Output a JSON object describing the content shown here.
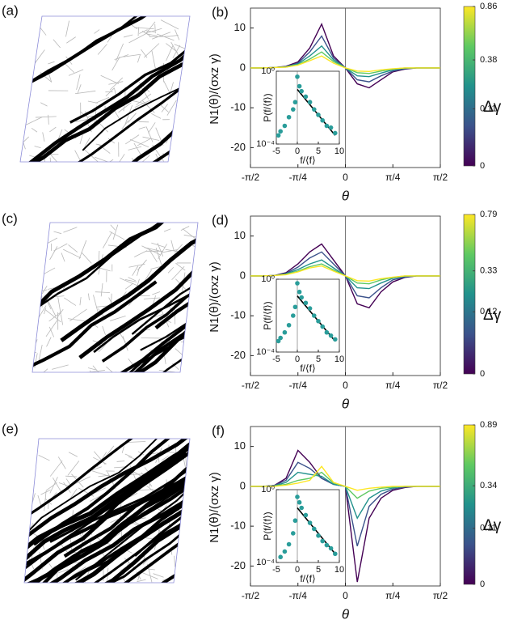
{
  "image_labels": [
    "(a)",
    "(c)",
    "(e)"
  ],
  "chart_data": [
    {
      "type": "line",
      "label": "(b)",
      "x": [
        -1.571,
        -1.374,
        -1.178,
        -0.982,
        -0.785,
        -0.589,
        -0.393,
        -0.196,
        0,
        0.196,
        0.393,
        0.589,
        0.785,
        0.982,
        1.178,
        1.374,
        1.571
      ],
      "xlim": [
        -1.5708,
        1.5708
      ],
      "xticks": [
        {
          "value": -1.5708,
          "label": "-π/2"
        },
        {
          "value": -0.7854,
          "label": "-π/4"
        },
        0,
        {
          "value": 0.7854,
          "label": "π/4"
        },
        {
          "value": 1.5708,
          "label": "π/2"
        }
      ],
      "ylim": [
        -25,
        15
      ],
      "yticks": [
        -20,
        -10,
        0,
        10
      ],
      "xlabel": "θ",
      "ylabel": "N1(θ)/(σxz γ)",
      "series": [
        {
          "color": "#440154",
          "values": [
            0,
            0,
            0.1,
            0.4,
            1.5,
            5,
            11,
            3,
            0,
            -4,
            -5,
            -3,
            -1,
            -0.3,
            0,
            0,
            0
          ]
        },
        {
          "color": "#3b528b",
          "values": [
            0,
            0,
            0.1,
            0.3,
            1.2,
            4,
            8,
            2.5,
            0,
            -3,
            -3.5,
            -2,
            -0.8,
            -0.2,
            0,
            0,
            0
          ]
        },
        {
          "color": "#21918c",
          "values": [
            0,
            0,
            0.1,
            0.3,
            1,
            3,
            5.5,
            2,
            0,
            -2,
            -2.2,
            -1.3,
            -0.5,
            -0.1,
            0,
            0,
            0
          ]
        },
        {
          "color": "#5ec962",
          "values": [
            0,
            0,
            0.1,
            0.2,
            0.8,
            2.2,
            4,
            1.6,
            0,
            -1.2,
            -1.4,
            -0.8,
            -0.3,
            0,
            0,
            0,
            0
          ]
        },
        {
          "color": "#fde725",
          "values": [
            0,
            0,
            0.1,
            0.2,
            0.7,
            1.8,
            3,
            1.2,
            0,
            -0.8,
            -0.9,
            -0.5,
            -0.2,
            0,
            0,
            0,
            0
          ]
        }
      ],
      "colorbar": {
        "label": "Δγ",
        "lim": [
          0,
          0.86
        ],
        "ticks": [
          0,
          0.11,
          0.38,
          0.86
        ],
        "scale": "sqrt"
      },
      "inset": {
        "type": "scatter",
        "color": "#2a9d9a",
        "x": [
          -4.5,
          -4,
          -3,
          -2,
          -1,
          -0.5,
          0,
          0.5,
          1,
          2,
          3,
          4,
          5,
          6,
          7,
          8,
          9
        ],
        "y": [
          0.0003,
          0.0005,
          0.001,
          0.003,
          0.008,
          0.02,
          0.5,
          0.15,
          0.08,
          0.04,
          0.02,
          0.008,
          0.004,
          0.002,
          0.001,
          0.0008,
          0.0004
        ],
        "fit_x": [
          0,
          9
        ],
        "fit_y": [
          0.1,
          0.0003
        ],
        "xlim": [
          -5,
          10
        ],
        "ylim": [
          0.0001,
          1
        ],
        "yscale": "log",
        "xticks": [
          -5,
          0,
          5,
          10
        ],
        "yticks": [
          {
            "value": 0.0001,
            "label": "10⁻⁴"
          },
          {
            "value": 1,
            "label": "10⁰"
          }
        ],
        "xlabel": "f/⟨f⟩",
        "ylabel": "P(f/⟨f⟩)"
      }
    },
    {
      "type": "line",
      "label": "(d)",
      "x": [
        -1.571,
        -1.374,
        -1.178,
        -0.982,
        -0.785,
        -0.589,
        -0.393,
        -0.196,
        0,
        0.196,
        0.393,
        0.589,
        0.785,
        0.982,
        1.178,
        1.374,
        1.571
      ],
      "xlim": [
        -1.5708,
        1.5708
      ],
      "xticks": [
        {
          "value": -1.5708,
          "label": "-π/2"
        },
        {
          "value": -0.7854,
          "label": "-π/4"
        },
        0,
        {
          "value": 0.7854,
          "label": "π/4"
        },
        {
          "value": 1.5708,
          "label": "π/2"
        }
      ],
      "ylim": [
        -25,
        15
      ],
      "yticks": [
        -20,
        -10,
        0,
        10
      ],
      "xlabel": "θ",
      "ylabel": "N1(θ)/(σxz γ)",
      "series": [
        {
          "color": "#440154",
          "values": [
            0,
            0,
            0.1,
            0.8,
            3,
            6,
            8,
            4,
            0,
            -7,
            -8,
            -4,
            -1.5,
            -0.4,
            0,
            0,
            0
          ]
        },
        {
          "color": "#3b528b",
          "values": [
            0,
            0,
            0.1,
            0.6,
            2.2,
            4.5,
            6,
            3,
            0,
            -5,
            -5.5,
            -3,
            -1,
            -0.3,
            0,
            0,
            0
          ]
        },
        {
          "color": "#21918c",
          "values": [
            0,
            0,
            0.1,
            0.5,
            1.6,
            3,
            4,
            2,
            0,
            -3,
            -3.2,
            -1.8,
            -0.6,
            -0.1,
            0,
            0,
            0
          ]
        },
        {
          "color": "#5ec962",
          "values": [
            0,
            0,
            0.1,
            0.4,
            1.2,
            2.3,
            3,
            1.5,
            0,
            -1.8,
            -2,
            -1,
            -0.4,
            0,
            0,
            0,
            0
          ]
        },
        {
          "color": "#fde725",
          "values": [
            0,
            0,
            0.1,
            0.3,
            1,
            2,
            2.5,
            1.2,
            0,
            -1.2,
            -1.3,
            -0.7,
            -0.3,
            0,
            0,
            0,
            0
          ]
        }
      ],
      "colorbar": {
        "label": "Δγ",
        "lim": [
          0,
          0.79
        ],
        "ticks": [
          0,
          0.12,
          0.33,
          0.79
        ],
        "scale": "sqrt"
      },
      "inset": {
        "type": "scatter",
        "color": "#2a9d9a",
        "x": [
          -4.5,
          -4,
          -3,
          -2,
          -1,
          -0.5,
          0,
          0.5,
          1,
          2,
          3,
          4,
          5,
          6,
          7,
          8,
          9
        ],
        "y": [
          0.0004,
          0.0006,
          0.0012,
          0.003,
          0.01,
          0.03,
          0.6,
          0.2,
          0.1,
          0.05,
          0.025,
          0.01,
          0.005,
          0.0025,
          0.0012,
          0.0008,
          0.0005
        ],
        "fit_x": [
          0,
          9
        ],
        "fit_y": [
          0.12,
          0.0004
        ],
        "xlim": [
          -5,
          10
        ],
        "ylim": [
          0.0001,
          1
        ],
        "yscale": "log",
        "xticks": [
          -5,
          0,
          5,
          10
        ],
        "yticks": [
          {
            "value": 0.0001,
            "label": "10⁻⁴"
          },
          {
            "value": 1,
            "label": "10⁰"
          }
        ],
        "xlabel": "f/⟨f⟩",
        "ylabel": "P(f/⟨f⟩)"
      }
    },
    {
      "type": "line",
      "label": "(f)",
      "x": [
        -1.571,
        -1.374,
        -1.178,
        -0.982,
        -0.785,
        -0.589,
        -0.393,
        -0.196,
        0,
        0.196,
        0.393,
        0.589,
        0.785,
        0.982,
        1.178,
        1.374,
        1.571
      ],
      "xlim": [
        -1.5708,
        1.5708
      ],
      "xticks": [
        {
          "value": -1.5708,
          "label": "-π/2"
        },
        {
          "value": -0.7854,
          "label": "-π/4"
        },
        0,
        {
          "value": 0.7854,
          "label": "π/4"
        },
        {
          "value": 1.5708,
          "label": "π/2"
        }
      ],
      "ylim": [
        -25,
        15
      ],
      "yticks": [
        -20,
        -10,
        0,
        10
      ],
      "xlabel": "θ",
      "ylabel": "N1(θ)/(σxz γ)",
      "series": [
        {
          "color": "#440154",
          "values": [
            0,
            0,
            0.2,
            2,
            9,
            6,
            2,
            0.5,
            0,
            -24,
            -8,
            -3,
            -1,
            -0.3,
            0,
            0,
            0
          ]
        },
        {
          "color": "#3b528b",
          "values": [
            0,
            0,
            0.2,
            1.5,
            6,
            4.5,
            2,
            0.5,
            0,
            -15,
            -5,
            -2,
            -0.7,
            -0.2,
            0,
            0,
            0
          ]
        },
        {
          "color": "#21918c",
          "values": [
            0,
            0,
            0.1,
            1,
            3.5,
            3,
            2.5,
            0.5,
            0,
            -8,
            -3,
            -1.2,
            -0.4,
            0,
            0,
            0,
            0
          ]
        },
        {
          "color": "#5ec962",
          "values": [
            0,
            0,
            0.1,
            0.5,
            1.5,
            2,
            3.5,
            0.8,
            0,
            -3,
            -1.2,
            -0.5,
            -0.2,
            0,
            0,
            0,
            0
          ]
        },
        {
          "color": "#fde725",
          "values": [
            0,
            0,
            0,
            0.3,
            0.8,
            1.5,
            5,
            1,
            0,
            -1,
            -0.5,
            -0.2,
            0,
            0,
            0,
            0,
            0
          ]
        }
      ],
      "colorbar": {
        "label": "Δγ",
        "lim": [
          0,
          0.89
        ],
        "ticks": [
          0,
          0.11,
          0.34,
          0.89
        ],
        "scale": "sqrt"
      },
      "inset": {
        "type": "scatter",
        "color": "#2a9d9a",
        "x": [
          -4,
          -3,
          -2,
          -1,
          -0.5,
          0,
          0.5,
          1,
          2,
          3,
          4,
          5,
          6,
          7,
          8,
          9
        ],
        "y": [
          0.0002,
          0.0004,
          0.001,
          0.004,
          0.02,
          0.4,
          0.2,
          0.1,
          0.04,
          0.015,
          0.007,
          0.003,
          0.0015,
          0.0009,
          0.0006,
          0.0003
        ],
        "fit_x": [
          0,
          9
        ],
        "fit_y": [
          0.1,
          0.0003
        ],
        "xlim": [
          -5,
          10
        ],
        "ylim": [
          0.0001,
          1
        ],
        "yscale": "log",
        "xticks": [
          -5,
          0,
          5,
          10
        ],
        "yticks": [
          {
            "value": 0.0001,
            "label": "10⁻⁴"
          },
          {
            "value": 1,
            "label": "10⁰"
          }
        ],
        "xlabel": "f/⟨f⟩",
        "ylabel": "P(f/⟨f⟩)"
      }
    }
  ]
}
